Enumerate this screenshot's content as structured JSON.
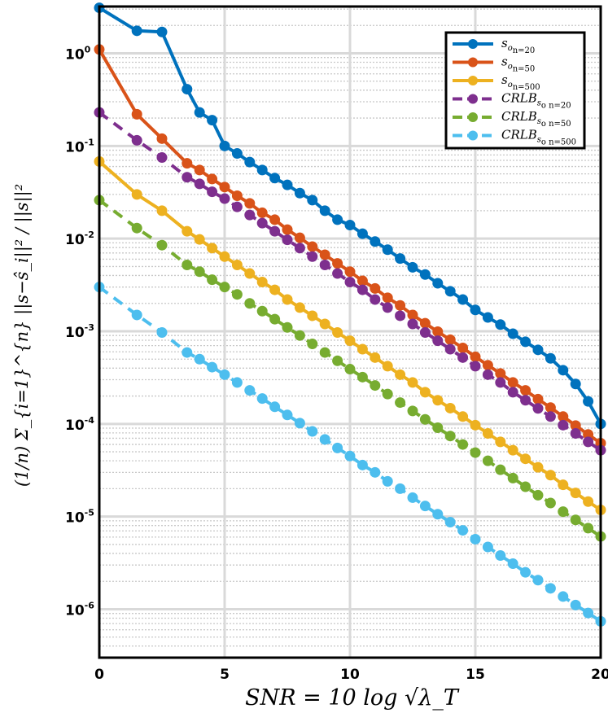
{
  "chart_data": {
    "type": "line",
    "title": "",
    "xlabel": "SNR = 10 log √λ_T",
    "ylabel": "(1/n) Σ_{i=1}^{n} ||s−ŝ_i||² / ||s||²",
    "xlim": [
      0,
      20
    ],
    "ylim": [
      3e-07,
      3.2
    ],
    "yscale": "log",
    "grid": true,
    "legend_position": "top-right",
    "x_ticks": [
      "0",
      "5",
      "10",
      "15",
      "20"
    ],
    "y_ticks": [
      {
        "base": "10",
        "exp": "0",
        "value": 1
      },
      {
        "base": "10",
        "exp": "-1",
        "value": 0.1
      },
      {
        "base": "10",
        "exp": "-2",
        "value": 0.01
      },
      {
        "base": "10",
        "exp": "-3",
        "value": 0.001
      },
      {
        "base": "10",
        "exp": "-4",
        "value": 0.0001
      },
      {
        "base": "10",
        "exp": "-5",
        "value": 1e-05
      },
      {
        "base": "10",
        "exp": "-6",
        "value": 1e-06
      }
    ],
    "series": [
      {
        "name": "s_{o n=20}",
        "label_main": "s",
        "label_sub": "o",
        "label_sub2": "n=20",
        "style": "solid",
        "color": "#0072BD",
        "x": [
          0,
          1.5,
          2.5,
          3.5,
          4,
          4.5,
          5,
          5.5,
          6,
          6.5,
          7,
          7.5,
          8,
          8.5,
          9,
          9.5,
          10,
          10.5,
          11,
          11.5,
          12,
          12.5,
          13,
          13.5,
          14,
          14.5,
          15,
          15.5,
          16,
          16.5,
          17,
          17.5,
          18,
          18.5,
          19,
          19.5,
          20
        ],
        "values": [
          3.1,
          1.75,
          1.7,
          0.41,
          0.23,
          0.19,
          0.1,
          0.083,
          0.067,
          0.055,
          0.045,
          0.038,
          0.031,
          0.026,
          0.02,
          0.016,
          0.014,
          0.0113,
          0.0093,
          0.0076,
          0.0061,
          0.0049,
          0.0041,
          0.0033,
          0.0027,
          0.0022,
          0.0017,
          0.00141,
          0.00118,
          0.00094,
          0.00077,
          0.00063,
          0.00051,
          0.00038,
          0.00027,
          0.000175,
          0.0001
        ]
      },
      {
        "name": "s_{o n=50}",
        "label_main": "s",
        "label_sub": "o",
        "label_sub2": "n=50",
        "style": "solid",
        "color": "#D95319",
        "x": [
          0,
          1.5,
          2.5,
          3.5,
          4,
          4.5,
          5,
          5.5,
          6,
          6.5,
          7,
          7.5,
          8,
          8.5,
          9,
          9.5,
          10,
          10.5,
          11,
          11.5,
          12,
          12.5,
          13,
          13.5,
          14,
          14.5,
          15,
          15.5,
          16,
          16.5,
          17,
          17.5,
          18,
          18.5,
          19,
          19.5,
          20
        ],
        "values": [
          1.1,
          0.22,
          0.12,
          0.065,
          0.055,
          0.044,
          0.036,
          0.029,
          0.024,
          0.019,
          0.016,
          0.0125,
          0.0102,
          0.0082,
          0.0067,
          0.0054,
          0.0044,
          0.0035,
          0.0029,
          0.0023,
          0.0019,
          0.0015,
          0.00122,
          0.00099,
          0.00081,
          0.00066,
          0.00053,
          0.00043,
          0.00035,
          0.00028,
          0.00023,
          0.000185,
          0.00015,
          0.00012,
          9.6e-05,
          7.7e-05,
          6.2e-05
        ]
      },
      {
        "name": "s_{o n=500}",
        "label_main": "s",
        "label_sub": "o",
        "label_sub2": "n=500",
        "style": "solid",
        "color": "#EDB120",
        "x": [
          0,
          1.5,
          2.5,
          3.5,
          4,
          4.5,
          5,
          5.5,
          6,
          6.5,
          7,
          7.5,
          8,
          8.5,
          9,
          9.5,
          10,
          10.5,
          11,
          11.5,
          12,
          12.5,
          13,
          13.5,
          14,
          14.5,
          15,
          15.5,
          16,
          16.5,
          17,
          17.5,
          18,
          18.5,
          19,
          19.5,
          20
        ],
        "values": [
          0.068,
          0.03,
          0.02,
          0.012,
          0.0098,
          0.0079,
          0.0064,
          0.0052,
          0.0042,
          0.0034,
          0.0028,
          0.0022,
          0.0018,
          0.00147,
          0.0012,
          0.00097,
          0.00079,
          0.00064,
          0.00052,
          0.00042,
          0.00034,
          0.00028,
          0.00022,
          0.00018,
          0.000148,
          0.00012,
          9.7e-05,
          7.9e-05,
          6.4e-05,
          5.2e-05,
          4.2e-05,
          3.4e-05,
          2.8e-05,
          2.2e-05,
          1.8e-05,
          1.45e-05,
          1.18e-05
        ]
      },
      {
        "name": "CRLB_{s o n=20}",
        "label_main": "CRLB",
        "label_sub": "s",
        "label_sub2": "o n=20",
        "style": "dashed",
        "color": "#7E2F8E",
        "x": [
          0,
          1.5,
          2.5,
          3.5,
          4,
          4.5,
          5,
          5.5,
          6,
          6.5,
          7,
          7.5,
          8,
          8.5,
          9,
          9.5,
          10,
          10.5,
          11,
          11.5,
          12,
          12.5,
          13,
          13.5,
          14,
          14.5,
          15,
          15.5,
          16,
          16.5,
          17,
          17.5,
          18,
          18.5,
          19,
          19.5,
          20
        ],
        "values": [
          0.23,
          0.115,
          0.075,
          0.046,
          0.039,
          0.032,
          0.027,
          0.022,
          0.018,
          0.0147,
          0.012,
          0.0097,
          0.0079,
          0.0064,
          0.0052,
          0.0042,
          0.0034,
          0.0028,
          0.0022,
          0.0018,
          0.00147,
          0.0012,
          0.00097,
          0.00079,
          0.00064,
          0.00052,
          0.00042,
          0.00034,
          0.00028,
          0.00022,
          0.00018,
          0.000147,
          0.00012,
          9.7e-05,
          7.9e-05,
          6.4e-05,
          5.2e-05
        ]
      },
      {
        "name": "CRLB_{s o n=50}",
        "label_main": "CRLB",
        "label_sub": "s",
        "label_sub2": "o n=50",
        "style": "dashed",
        "color": "#77AC30",
        "x": [
          0,
          1.5,
          2.5,
          3.5,
          4,
          4.5,
          5,
          5.5,
          6,
          6.5,
          7,
          7.5,
          8,
          8.5,
          9,
          9.5,
          10,
          10.5,
          11,
          11.5,
          12,
          12.5,
          13,
          13.5,
          14,
          14.5,
          15,
          15.5,
          16,
          16.5,
          17,
          17.5,
          18,
          18.5,
          19,
          19.5,
          20
        ],
        "values": [
          0.026,
          0.013,
          0.0085,
          0.0052,
          0.0044,
          0.0036,
          0.003,
          0.0025,
          0.002,
          0.00165,
          0.00135,
          0.0011,
          0.0009,
          0.00073,
          0.00059,
          0.00048,
          0.00039,
          0.00032,
          0.00026,
          0.00021,
          0.00017,
          0.000138,
          0.000112,
          9.1e-05,
          7.4e-05,
          6e-05,
          4.9e-05,
          4e-05,
          3.2e-05,
          2.6e-05,
          2.1e-05,
          1.7e-05,
          1.4e-05,
          1.13e-05,
          9.2e-06,
          7.5e-06,
          6.1e-06
        ]
      },
      {
        "name": "CRLB_{s o n=500}",
        "label_main": "CRLB",
        "label_sub": "s",
        "label_sub2": "o n=500",
        "style": "dashed",
        "color": "#4DBEEE",
        "x": [
          0,
          1.5,
          2.5,
          3.5,
          4,
          4.5,
          5,
          5.5,
          6,
          6.5,
          7,
          7.5,
          8,
          8.5,
          9,
          9.5,
          10,
          10.5,
          11,
          11.5,
          12,
          12.5,
          13,
          13.5,
          14,
          14.5,
          15,
          15.5,
          16,
          16.5,
          17,
          17.5,
          18,
          18.5,
          19,
          19.5,
          20
        ],
        "values": [
          0.003,
          0.0015,
          0.00097,
          0.00059,
          0.0005,
          0.00041,
          0.00034,
          0.00028,
          0.00023,
          0.000188,
          0.000153,
          0.000125,
          0.000102,
          8.3e-05,
          6.8e-05,
          5.5e-05,
          4.5e-05,
          3.6e-05,
          3e-05,
          2.4e-05,
          2e-05,
          1.6e-05,
          1.3e-05,
          1.06e-05,
          8.7e-06,
          7.1e-06,
          5.7e-06,
          4.7e-06,
          3.8e-06,
          3.1e-06,
          2.5e-06,
          2.06e-06,
          1.68e-06,
          1.37e-06,
          1.11e-06,
          9.1e-07,
          7.4e-07
        ]
      }
    ]
  }
}
